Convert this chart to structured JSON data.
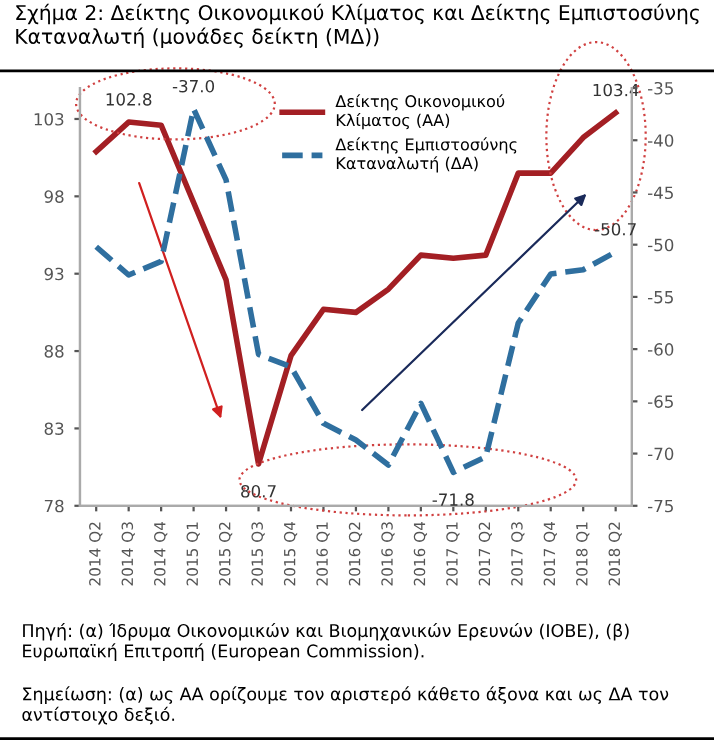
{
  "chart_data": {
    "type": "line",
    "title": "Σχήμα 2: Δείκτης Οικονομικού Κλίματος και Δείκτης Εμπιστοσύνης Καταναλωτή (μονάδες δείκτη (ΜΔ))",
    "categories": [
      "2014 Q2",
      "2014 Q3",
      "2014 Q4",
      "2015 Q1",
      "2015 Q2",
      "2015 Q3",
      "2015 Q4",
      "2016 Q1",
      "2016 Q2",
      "2016 Q3",
      "2016 Q4",
      "2017 Q1",
      "2017 Q2",
      "2017 Q3",
      "2017 Q4",
      "2018 Q1",
      "2018 Q2"
    ],
    "series": [
      {
        "name": "Δείκτης Οικονομικού\nΚλίματος (ΑΑ)",
        "color": "#a31f24",
        "line_style": "solid",
        "values": [
          100.9,
          102.8,
          102.6,
          97.6,
          92.6,
          80.7,
          87.7,
          90.7,
          90.5,
          92.0,
          94.2,
          94.0,
          94.2,
          99.5,
          99.5,
          101.8,
          103.4
        ],
        "value_labels": [
          null,
          "102.8",
          null,
          null,
          null,
          "80.7",
          null,
          null,
          null,
          null,
          null,
          null,
          null,
          null,
          null,
          null,
          "103.4"
        ]
      },
      {
        "name": "Δείκτης Εμπιστοσύνης\nΚαταναλωτή (ΔΑ)",
        "color": "#2f6f9f",
        "line_style": "dashed",
        "axis": "y2",
        "values": [
          -50.2,
          -52.9,
          -51.6,
          -37.0,
          -43.8,
          -60.5,
          -61.7,
          -67.1,
          -68.7,
          -71.1,
          -65.2,
          -71.8,
          -70.3,
          -57.5,
          -52.8,
          -52.4,
          -50.7
        ],
        "value_labels": [
          null,
          null,
          null,
          "-37.0",
          null,
          null,
          null,
          null,
          null,
          null,
          null,
          "-71.8",
          null,
          null,
          null,
          null,
          "-50.7"
        ]
      }
    ],
    "ylim": [
      78,
      105
    ],
    "yticks": [
      78,
      83,
      88,
      93,
      98,
      103
    ],
    "y2lim": [
      -75,
      -35
    ],
    "y2ticks": [
      -35,
      -40,
      -45,
      -50,
      -55,
      -60,
      -65,
      -70,
      -75
    ],
    "grid": false,
    "legend": "top",
    "marker": "none",
    "annotations": [
      "Πηγή: (α) Ίδρυμα Οικονομικών και Βιομηχανικών Ερευνών (ΙΟΒΕ), (β) Ευρωπαϊκή Επιτροπή (European Commission).",
      "Σημείωση: (α) ως ΑΑ ορίζουμε τον αριστερό κάθετο άξονα και ως ΔΑ τον αντίστοιχο δεξιό."
    ]
  }
}
